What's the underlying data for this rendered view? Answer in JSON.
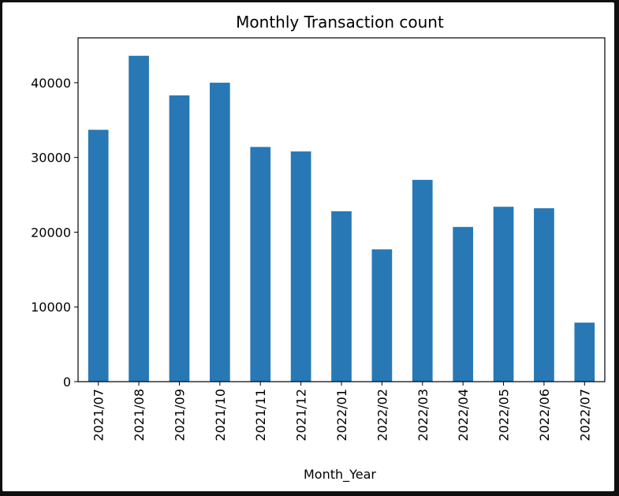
{
  "chart_data": {
    "type": "bar",
    "title": "Monthly Transaction count",
    "xlabel": "Month_Year",
    "ylabel": "",
    "categories": [
      "2021/07",
      "2021/08",
      "2021/09",
      "2021/10",
      "2021/11",
      "2021/12",
      "2022/01",
      "2022/02",
      "2022/03",
      "2022/04",
      "2022/05",
      "2022/06",
      "2022/07"
    ],
    "values": [
      33700,
      43600,
      38300,
      40000,
      31400,
      30800,
      22800,
      17700,
      27000,
      20700,
      23400,
      23200,
      7900
    ],
    "ylim": [
      0,
      46000
    ],
    "yticks": [
      0,
      10000,
      20000,
      30000,
      40000
    ],
    "ytick_labels": [
      "0",
      "10000",
      "20000",
      "30000",
      "40000"
    ],
    "bar_color": "#2878b5",
    "grid": false,
    "legend": "none"
  }
}
